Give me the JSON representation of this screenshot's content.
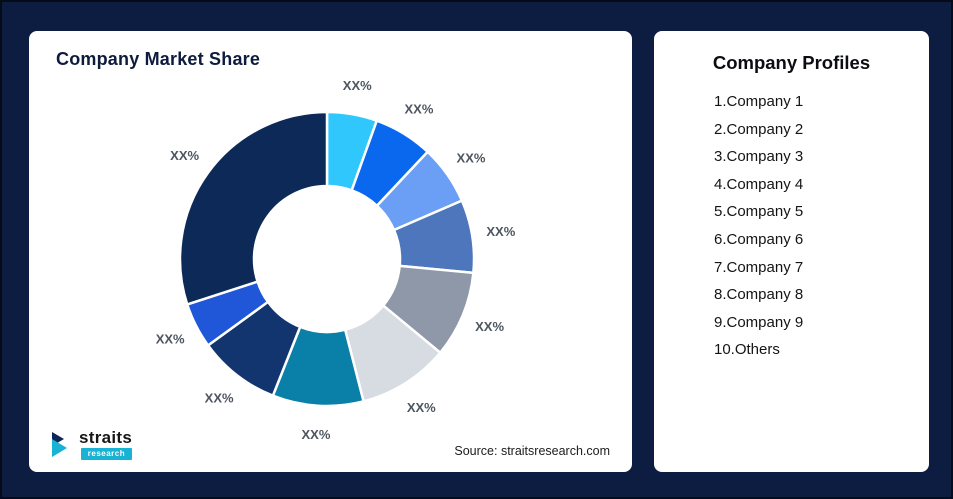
{
  "page": {
    "background_color": "#0d1d42"
  },
  "left_card": {
    "title": "Company Market Share",
    "source": "Source: straitsresearch.com",
    "logo_text": "straits",
    "logo_subtext": "research",
    "logo_accent_color": "#17b2d4",
    "logo_dark_color": "#0d2757"
  },
  "right_card": {
    "title": "Company Profiles",
    "items": [
      "1.Company 1",
      "2.Company 2",
      "3.Company 3",
      "4.Company 4",
      "5.Company 5",
      "6.Company 6",
      "7.Company 7",
      "8.Company 8",
      "9.Company 9",
      "10.Others"
    ]
  },
  "chart_data": {
    "type": "pie",
    "subtype": "donut",
    "title": "Company Market Share",
    "value_labels_are_placeholders": true,
    "legend": "none",
    "segments": [
      {
        "label": "XX%",
        "value": 5.5,
        "color": "#30c7fd"
      },
      {
        "label": "XX%",
        "value": 6.5,
        "color": "#0a68ee"
      },
      {
        "label": "XX%",
        "value": 6.5,
        "color": "#6b9ef5"
      },
      {
        "label": "XX%",
        "value": 8.0,
        "color": "#4d76bd"
      },
      {
        "label": "XX%",
        "value": 9.5,
        "color": "#8f98a8"
      },
      {
        "label": "XX%",
        "value": 10.0,
        "color": "#d7dbe2"
      },
      {
        "label": "XX%",
        "value": 10.0,
        "color": "#0a7fa8"
      },
      {
        "label": "XX%",
        "value": 9.0,
        "color": "#12356f"
      },
      {
        "label": "XX%",
        "value": 5.0,
        "color": "#2057d9"
      },
      {
        "label": "XX%",
        "value": 30.0,
        "color": "#0c2958"
      }
    ]
  }
}
